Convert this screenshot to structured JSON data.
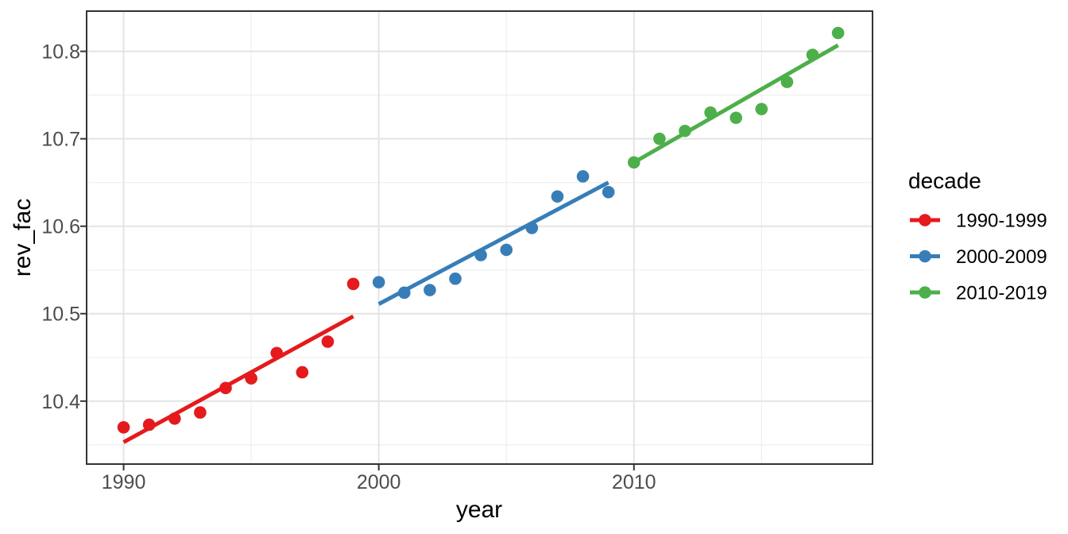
{
  "chart_data": {
    "type": "scatter",
    "title": "",
    "xlabel": "year",
    "ylabel": "rev_fac",
    "legend_title": "decade",
    "legend_position": "right",
    "grid": true,
    "xlim": [
      1988.55,
      2019.35
    ],
    "ylim": [
      10.328,
      10.846
    ],
    "x_tick_values": [
      1990,
      2000,
      2010
    ],
    "x_tick_labels": [
      "1990",
      "2000",
      "2010"
    ],
    "x_minor_ticks": [
      1995,
      2005,
      2015
    ],
    "y_tick_values": [
      10.4,
      10.5,
      10.6,
      10.7,
      10.8
    ],
    "y_tick_labels": [
      "10.4",
      "10.5",
      "10.6",
      "10.7",
      "10.8"
    ],
    "y_minor_ticks": [
      10.35,
      10.45,
      10.55,
      10.65,
      10.75
    ],
    "style": {
      "background": "#FFFFFF",
      "panel_background": "#FFFFFF",
      "panel_border_color": "#333333",
      "grid_major_color": "#E4E4E4",
      "grid_minor_color": "#F0F0F0",
      "tick_color": "#333333",
      "tick_label_color": "#4D4D4D",
      "text_color": "#000000"
    },
    "series": [
      {
        "name": "1990-1999",
        "color": "#E41A1C",
        "x": [
          1990,
          1991,
          1992,
          1993,
          1994,
          1995,
          1996,
          1997,
          1998,
          1999
        ],
        "y": [
          10.37,
          10.373,
          10.38,
          10.387,
          10.415,
          10.426,
          10.455,
          10.433,
          10.468,
          10.534
        ],
        "trend": {
          "x1": 1990,
          "y1": 10.353,
          "x2": 1999,
          "y2": 10.497
        }
      },
      {
        "name": "2000-2009",
        "color": "#377EB8",
        "x": [
          2000,
          2001,
          2002,
          2003,
          2004,
          2005,
          2006,
          2007,
          2008,
          2009
        ],
        "y": [
          10.536,
          10.524,
          10.527,
          10.54,
          10.567,
          10.573,
          10.598,
          10.634,
          10.657,
          10.639
        ],
        "trend": {
          "x1": 2000,
          "y1": 10.511,
          "x2": 2009,
          "y2": 10.65
        }
      },
      {
        "name": "2010-2019",
        "color": "#4DAF4A",
        "x": [
          2010,
          2011,
          2012,
          2013,
          2014,
          2015,
          2016,
          2017,
          2018
        ],
        "y": [
          10.673,
          10.7,
          10.709,
          10.73,
          10.724,
          10.734,
          10.765,
          10.796,
          10.821
        ],
        "trend": {
          "x1": 2010,
          "y1": 10.673,
          "x2": 2018,
          "y2": 10.807
        }
      }
    ]
  }
}
